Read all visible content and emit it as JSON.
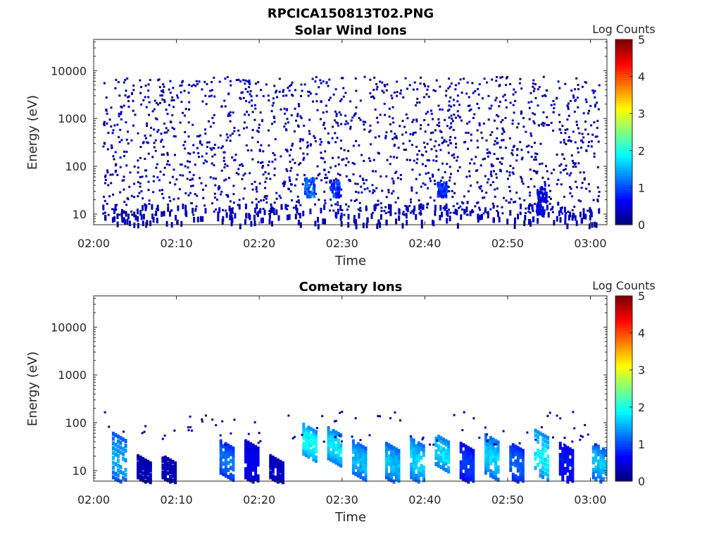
{
  "figure": {
    "title": "RPCICA150813T02.PNG"
  },
  "chart_data": [
    {
      "type": "heatmap",
      "title": "Solar Wind Ions",
      "xlabel": "Time",
      "ylabel": "Energy (eV)",
      "x_scale": "time",
      "y_scale": "log",
      "xlim": [
        "02:00",
        "03:02"
      ],
      "ylim": [
        6,
        45000
      ],
      "x_ticks": [
        "02:00",
        "02:10",
        "02:20",
        "02:30",
        "02:40",
        "02:50",
        "03:00"
      ],
      "y_ticks": [
        "10",
        "100",
        "1000",
        "10000"
      ],
      "colorbar": {
        "label": "Log Counts",
        "range": [
          0,
          5
        ],
        "ticks": [
          "0",
          "1",
          "2",
          "3",
          "4",
          "5"
        ],
        "colormap": "jet"
      },
      "summary": {
        "background": "sparse scattered counts at log level ~0-0.5 between ~10 eV and ~8000 eV across 02:01-03:01",
        "low_energy_bursts": [
          {
            "time": "02:26",
            "e_min": 25,
            "e_max": 60,
            "level": 1.3
          },
          {
            "time": "02:29",
            "e_min": 25,
            "e_max": 55,
            "level": 1.1
          },
          {
            "time": "02:42",
            "e_min": 25,
            "e_max": 50,
            "level": 1.0
          },
          {
            "time": "02:54",
            "e_min": 10,
            "e_max": 45,
            "level": 0.6
          }
        ]
      }
    },
    {
      "type": "heatmap",
      "title": "Cometary Ions",
      "xlabel": "Time",
      "ylabel": "Energy (eV)",
      "x_scale": "time",
      "y_scale": "log",
      "xlim": [
        "02:00",
        "03:02"
      ],
      "ylim": [
        6,
        45000
      ],
      "x_ticks": [
        "02:00",
        "02:10",
        "02:20",
        "02:30",
        "02:40",
        "02:50",
        "03:00"
      ],
      "y_ticks": [
        "10",
        "100",
        "1000",
        "10000"
      ],
      "colorbar": {
        "label": "Log Counts",
        "range": [
          0,
          5
        ],
        "ticks": [
          "0",
          "1",
          "2",
          "3",
          "4",
          "5"
        ],
        "colormap": "jet"
      },
      "bursts": [
        {
          "time": "02:03",
          "e_min": 8,
          "e_max": 65,
          "peak": 1.6
        },
        {
          "time": "02:06",
          "e_min": 8,
          "e_max": 22,
          "peak": 0.3
        },
        {
          "time": "02:09",
          "e_min": 8,
          "e_max": 22,
          "peak": 0.3
        },
        {
          "time": "02:16",
          "e_min": 10,
          "e_max": 45,
          "peak": 1.3
        },
        {
          "time": "02:19",
          "e_min": 8,
          "e_max": 45,
          "peak": 0.6
        },
        {
          "time": "02:22",
          "e_min": 8,
          "e_max": 22,
          "peak": 0.4
        },
        {
          "time": "02:26",
          "e_min": 25,
          "e_max": 100,
          "peak": 2.1
        },
        {
          "time": "02:29",
          "e_min": 20,
          "e_max": 85,
          "peak": 1.9
        },
        {
          "time": "02:32",
          "e_min": 10,
          "e_max": 45,
          "peak": 1.7
        },
        {
          "time": "02:36",
          "e_min": 8,
          "e_max": 40,
          "peak": 1.7
        },
        {
          "time": "02:39",
          "e_min": 8,
          "e_max": 50,
          "peak": 1.8
        },
        {
          "time": "02:42",
          "e_min": 15,
          "e_max": 60,
          "peak": 1.9
        },
        {
          "time": "02:45",
          "e_min": 8,
          "e_max": 40,
          "peak": 1.0
        },
        {
          "time": "02:48",
          "e_min": 10,
          "e_max": 60,
          "peak": 1.8
        },
        {
          "time": "02:51",
          "e_min": 8,
          "e_max": 40,
          "peak": 1.2
        },
        {
          "time": "02:54",
          "e_min": 10,
          "e_max": 75,
          "peak": 2.0
        },
        {
          "time": "02:57",
          "e_min": 8,
          "e_max": 40,
          "peak": 0.8
        },
        {
          "time": "03:01",
          "e_min": 8,
          "e_max": 40,
          "peak": 1.7
        }
      ]
    }
  ]
}
